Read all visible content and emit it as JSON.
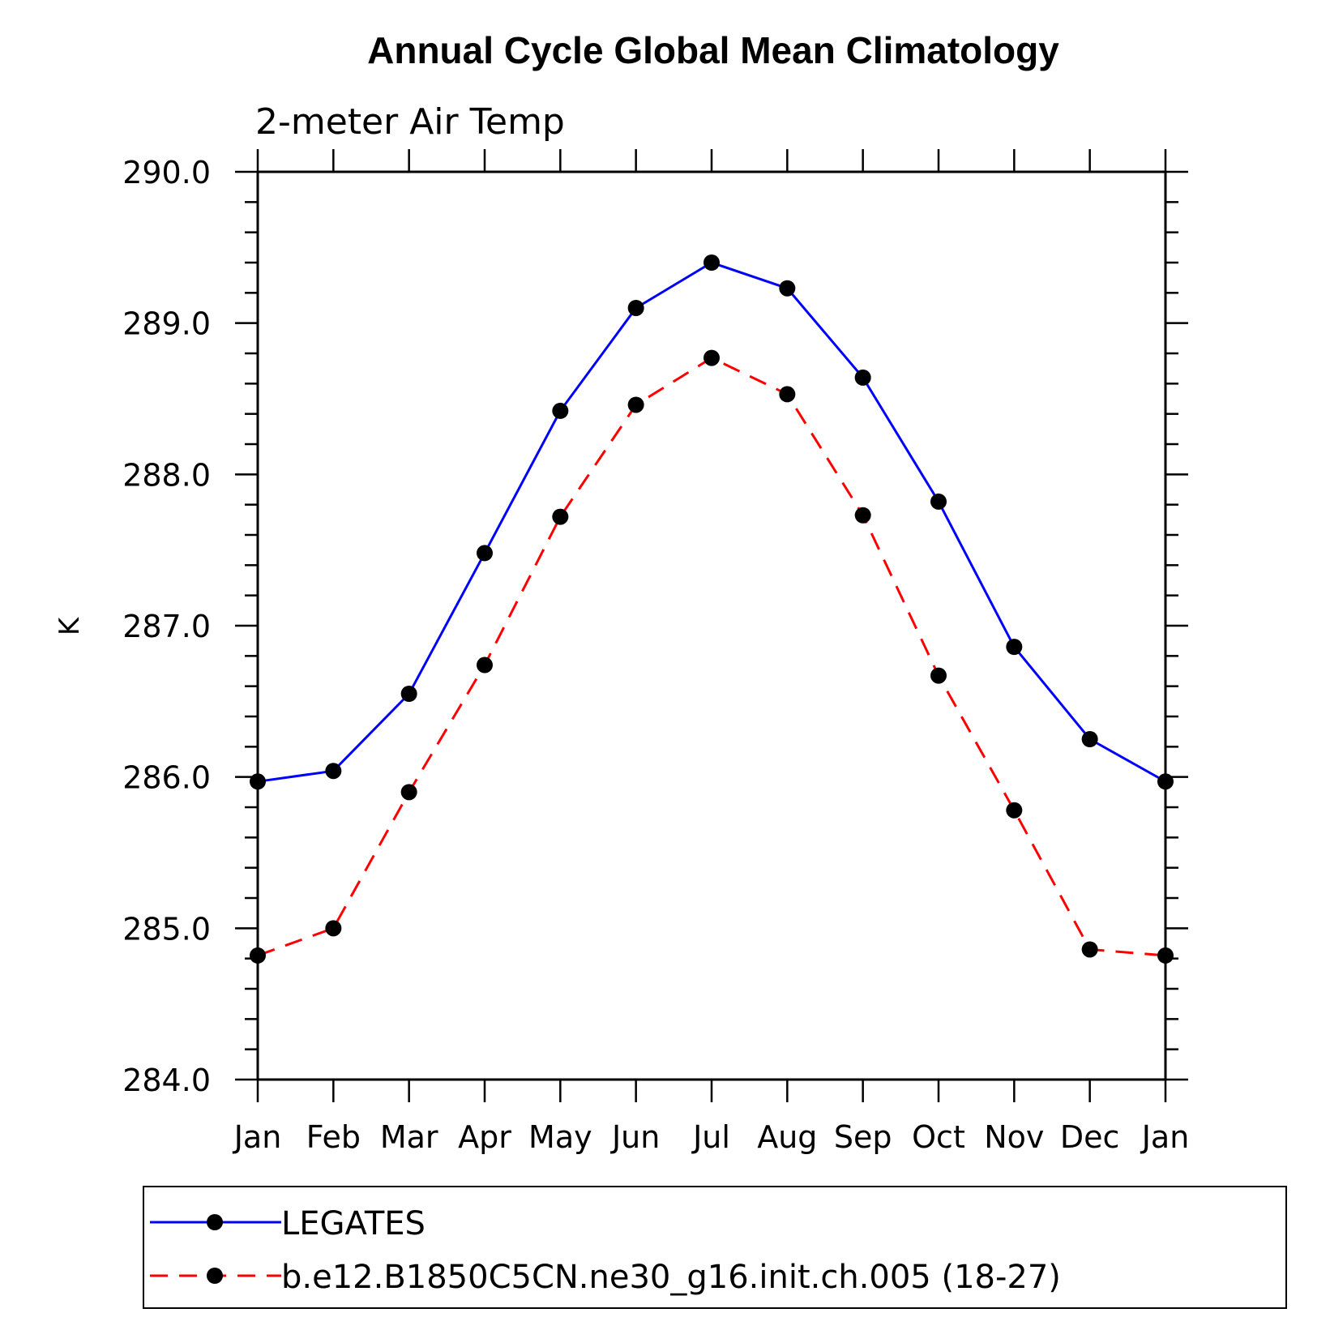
{
  "chart_data": {
    "type": "line",
    "title": "Annual Cycle Global Mean Climatology",
    "subtitle": "2-meter Air Temp",
    "xlabel": "",
    "ylabel": "K",
    "categories": [
      "Jan",
      "Feb",
      "Mar",
      "Apr",
      "May",
      "Jun",
      "Jul",
      "Aug",
      "Sep",
      "Oct",
      "Nov",
      "Dec",
      "Jan"
    ],
    "ylim": [
      284.0,
      290.0
    ],
    "yticks": [
      "284.0",
      "285.0",
      "286.0",
      "287.0",
      "288.0",
      "289.0",
      "290.0"
    ],
    "yminor_step": 0.2,
    "grid": false,
    "legend_position": "bottom",
    "series": [
      {
        "name": "LEGATES",
        "color": "#0000ff",
        "dash": "solid",
        "marker": "filled-circle",
        "values": [
          285.97,
          286.04,
          286.55,
          287.48,
          288.42,
          289.1,
          289.4,
          289.23,
          288.64,
          287.82,
          286.86,
          286.25,
          285.97
        ]
      },
      {
        "name": "b.e12.B1850C5CN.ne30_g16.init.ch.005 (18-27)",
        "color": "#ff0000",
        "dash": "dashed",
        "marker": "filled-circle",
        "values": [
          284.82,
          285.0,
          285.9,
          286.74,
          287.72,
          288.46,
          288.77,
          288.53,
          287.73,
          286.67,
          285.78,
          284.86,
          284.82
        ]
      }
    ]
  }
}
